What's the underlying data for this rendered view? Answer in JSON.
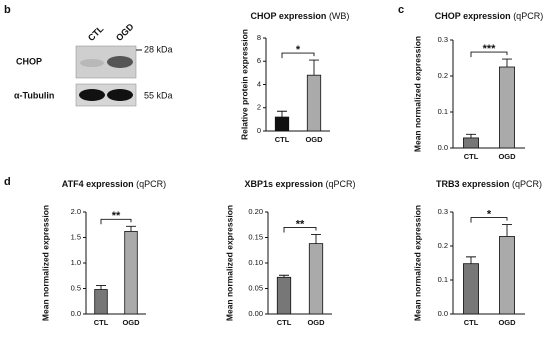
{
  "blot": {
    "panel": "b",
    "lanes": [
      "CTL",
      "OGD"
    ],
    "bands": [
      {
        "name": "CHOP",
        "size": "28 kDa"
      },
      {
        "name": "α-Tubulin",
        "size": "55 kDa"
      }
    ]
  },
  "chart_data": [
    {
      "type": "bar",
      "title": "CHOP expression",
      "method": "(WB)",
      "ylabel": "Relative protein expression",
      "categories": [
        "CTL",
        "OGD"
      ],
      "values": [
        1.2,
        4.8
      ],
      "errors": [
        0.5,
        1.3
      ],
      "colors": [
        "#111111",
        "#aaaaaa"
      ],
      "ylim": [
        0,
        8
      ],
      "yticks": [
        0,
        2,
        4,
        6,
        8
      ],
      "significance": "*"
    },
    {
      "type": "bar",
      "panel": "c",
      "title": "CHOP expression",
      "method": "(qPCR)",
      "ylabel": "Mean normalized expression",
      "categories": [
        "CTL",
        "OGD"
      ],
      "values": [
        0.028,
        0.225
      ],
      "errors": [
        0.01,
        0.022
      ],
      "colors": [
        "#777777",
        "#aaaaaa"
      ],
      "ylim": [
        0,
        0.3
      ],
      "yticks": [
        {
          "value": 0,
          "label": "0.0"
        },
        0.1,
        0.2,
        0.3
      ],
      "significance": "***"
    },
    {
      "type": "bar",
      "panel": "d",
      "title": "ATF4 expression",
      "method": "(qPCR)",
      "ylabel": "Mean normalized expression",
      "categories": [
        "CTL",
        "OGD"
      ],
      "values": [
        0.48,
        1.62
      ],
      "errors": [
        0.08,
        0.1
      ],
      "colors": [
        "#777777",
        "#aaaaaa"
      ],
      "ylim": [
        0,
        2
      ],
      "yticks": [
        {
          "value": 0,
          "label": "0.0"
        },
        0.5,
        {
          "value": 1,
          "label": "1.0"
        },
        1.5,
        {
          "value": 2,
          "label": "2.0"
        }
      ],
      "significance": "**"
    },
    {
      "type": "bar",
      "title": "XBP1s expression",
      "method": "(qPCR)",
      "ylabel": "Mean normalized expression",
      "categories": [
        "CTL",
        "OGD"
      ],
      "values": [
        0.072,
        0.138
      ],
      "errors": [
        0.004,
        0.018
      ],
      "colors": [
        "#777777",
        "#aaaaaa"
      ],
      "ylim": [
        0,
        0.2
      ],
      "yticks": [
        {
          "value": 0,
          "label": "0.00"
        },
        0.05,
        {
          "value": 0.1,
          "label": "0.10"
        },
        0.15,
        {
          "value": 0.2,
          "label": "0.20"
        }
      ],
      "significance": "**"
    },
    {
      "type": "bar",
      "title": "TRB3 expression",
      "method": "(qPCR)",
      "ylabel": "Mean normalized expression",
      "categories": [
        "CTL",
        "OGD"
      ],
      "values": [
        0.148,
        0.228
      ],
      "errors": [
        0.02,
        0.035
      ],
      "colors": [
        "#777777",
        "#aaaaaa"
      ],
      "ylim": [
        0,
        0.3
      ],
      "yticks": [
        {
          "value": 0,
          "label": "0.0"
        },
        0.1,
        0.2,
        0.3
      ],
      "significance": "*"
    }
  ]
}
